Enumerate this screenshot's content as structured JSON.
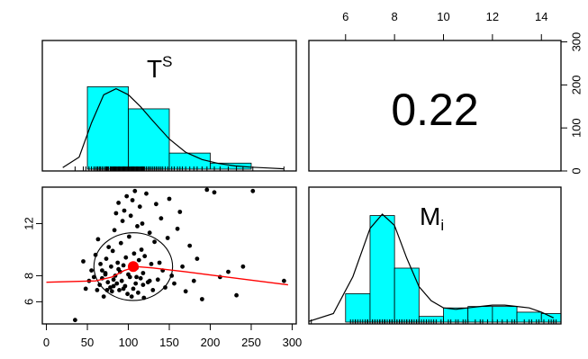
{
  "chart_data": {
    "type": "pairs",
    "variables": [
      {
        "name": "T",
        "sup": "S"
      },
      {
        "name": "M",
        "sub": "i"
      }
    ],
    "axes": {
      "x1_ticks": [
        0,
        50,
        100,
        150,
        200,
        250,
        300
      ],
      "x1_range": [
        -5,
        305
      ],
      "x2_ticks": [
        6,
        8,
        10,
        12,
        14
      ],
      "x2_range": [
        4.5,
        14.8
      ],
      "y2_ticks": [
        6,
        8,
        12
      ],
      "y2_range": [
        4.3,
        14.8
      ],
      "yhist_ticks": [
        0,
        100,
        200,
        300
      ],
      "yhist_range": [
        0,
        320
      ]
    },
    "histogram_T": {
      "bins": [
        [
          50,
          100
        ],
        [
          100,
          150
        ],
        [
          150,
          200
        ],
        [
          200,
          250
        ]
      ],
      "counts": [
        205,
        150,
        40,
        15
      ],
      "ymax": 320,
      "density_x": [
        20,
        40,
        55,
        70,
        85,
        100,
        115,
        130,
        150,
        170,
        190,
        210,
        230,
        250,
        270,
        290
      ],
      "density_y": [
        4,
        30,
        115,
        185,
        200,
        185,
        155,
        120,
        75,
        42,
        24,
        14,
        8,
        5,
        3,
        1
      ]
    },
    "histogram_M": {
      "bins": [
        [
          6,
          7
        ],
        [
          7,
          8
        ],
        [
          8,
          9
        ],
        [
          9,
          10
        ],
        [
          10,
          11
        ],
        [
          11,
          12
        ],
        [
          12,
          13
        ],
        [
          13,
          14
        ],
        [
          14,
          15
        ]
      ],
      "counts": [
        20,
        75,
        38,
        4,
        10,
        11,
        11,
        7,
        6
      ],
      "ymax": 95,
      "density_x": [
        4.5,
        5.5,
        6.3,
        7.0,
        7.5,
        8.0,
        8.5,
        9.0,
        9.5,
        10.0,
        10.5,
        11.0,
        11.5,
        12.0,
        12.5,
        13.0,
        13.5,
        14.0,
        14.5
      ],
      "density_y": [
        0.5,
        6,
        32,
        66,
        76,
        68,
        45,
        25,
        15,
        10,
        9,
        10,
        11,
        12,
        12,
        11,
        10,
        7,
        3
      ]
    },
    "correlation": "0.22",
    "scatter": {
      "points": [
        [
          62,
          6.9
        ],
        [
          35,
          4.6
        ],
        [
          45,
          9.1
        ],
        [
          48,
          7.0
        ],
        [
          52,
          7.6
        ],
        [
          55,
          8.4
        ],
        [
          58,
          7.9
        ],
        [
          60,
          9.6
        ],
        [
          63,
          10.8
        ],
        [
          65,
          7.3
        ],
        [
          66,
          8.9
        ],
        [
          68,
          7.8
        ],
        [
          70,
          6.4
        ],
        [
          72,
          8.2
        ],
        [
          73,
          9.3
        ],
        [
          75,
          7.5
        ],
        [
          76,
          10.2
        ],
        [
          78,
          7.1
        ],
        [
          79,
          8.7
        ],
        [
          80,
          6.8
        ],
        [
          81,
          9.9
        ],
        [
          82,
          7.7
        ],
        [
          83,
          11.5
        ],
        [
          84,
          8.0
        ],
        [
          85,
          12.8
        ],
        [
          86,
          7.4
        ],
        [
          87,
          9.0
        ],
        [
          88,
          13.6
        ],
        [
          89,
          6.9
        ],
        [
          90,
          8.3
        ],
        [
          91,
          10.5
        ],
        [
          92,
          7.6
        ],
        [
          93,
          12.2
        ],
        [
          94,
          8.8
        ],
        [
          95,
          13.0
        ],
        [
          96,
          7.2
        ],
        [
          97,
          9.4
        ],
        [
          98,
          14.1
        ],
        [
          99,
          6.6
        ],
        [
          100,
          8.1
        ],
        [
          101,
          11.0
        ],
        [
          102,
          7.9
        ],
        [
          103,
          12.6
        ],
        [
          104,
          8.5
        ],
        [
          105,
          13.8
        ],
        [
          106,
          7.0
        ],
        [
          107,
          9.7
        ],
        [
          108,
          14.5
        ],
        [
          109,
          7.4
        ],
        [
          110,
          8.6
        ],
        [
          111,
          11.8
        ],
        [
          112,
          6.7
        ],
        [
          113,
          9.2
        ],
        [
          114,
          13.3
        ],
        [
          115,
          7.8
        ],
        [
          116,
          10.0
        ],
        [
          117,
          12.0
        ],
        [
          118,
          8.2
        ],
        [
          119,
          6.3
        ],
        [
          120,
          9.5
        ],
        [
          122,
          14.3
        ],
        [
          124,
          7.5
        ],
        [
          126,
          11.3
        ],
        [
          128,
          8.9
        ],
        [
          130,
          6.9
        ],
        [
          132,
          10.6
        ],
        [
          134,
          13.5
        ],
        [
          136,
          7.7
        ],
        [
          138,
          9.0
        ],
        [
          140,
          12.4
        ],
        [
          142,
          8.4
        ],
        [
          145,
          7.1
        ],
        [
          148,
          10.9
        ],
        [
          150,
          13.9
        ],
        [
          153,
          8.0
        ],
        [
          156,
          7.4
        ],
        [
          160,
          11.6
        ],
        [
          163,
          12.9
        ],
        [
          166,
          8.7
        ],
        [
          170,
          6.8
        ],
        [
          175,
          10.3
        ],
        [
          180,
          7.6
        ],
        [
          184,
          9.3
        ],
        [
          190,
          6.2
        ],
        [
          196,
          14.6
        ],
        [
          205,
          14.4
        ],
        [
          212,
          7.9
        ],
        [
          222,
          8.3
        ],
        [
          232,
          6.5
        ],
        [
          240,
          8.7
        ],
        [
          252,
          14.5
        ],
        [
          290,
          7.6
        ],
        [
          72,
          8.1
        ],
        [
          88,
          8.5
        ],
        [
          94,
          7.0
        ],
        [
          110,
          7.9
        ],
        [
          118,
          7.3
        ],
        [
          74,
          6.9
        ],
        [
          68,
          8.4
        ],
        [
          104,
          6.4
        ],
        [
          126,
          7.6
        ],
        [
          82,
          7.2
        ]
      ],
      "lowess_x": [
        0,
        60,
        80,
        95,
        110,
        130,
        170,
        220,
        295
      ],
      "lowess_y": [
        7.5,
        7.6,
        7.9,
        8.4,
        8.7,
        8.6,
        8.3,
        7.9,
        7.3
      ],
      "centroid": [
        106,
        8.7
      ],
      "ellipse": {
        "cx": 106,
        "cy": 8.7,
        "rx_data": 48,
        "ry_data": 2.6
      }
    }
  }
}
